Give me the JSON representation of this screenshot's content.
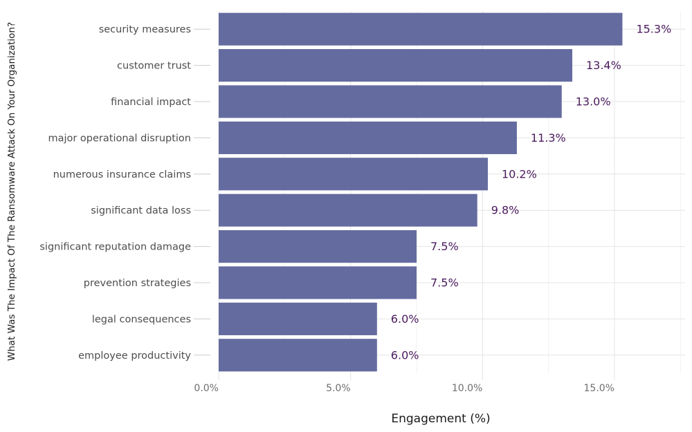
{
  "chart_data": {
    "type": "bar",
    "orientation": "horizontal",
    "title": "",
    "xlabel": "Engagement (%)",
    "ylabel": "What Was The Impact Of The Ransomware Attack On Your Organization?",
    "categories": [
      "security measures",
      "customer trust",
      "financial impact",
      "major operational disruption",
      "numerous insurance claims",
      "significant data loss",
      "significant reputation damage",
      "prevention strategies",
      "legal consequences",
      "employee productivity"
    ],
    "values": [
      15.3,
      13.4,
      13.0,
      11.3,
      10.2,
      9.8,
      7.5,
      7.5,
      6.0,
      6.0
    ],
    "data_labels": [
      "15.3%",
      "13.4%",
      "13.0%",
      "11.3%",
      "10.2%",
      "9.8%",
      "7.5%",
      "7.5%",
      "6.0%",
      "6.0%"
    ],
    "xticks": [
      0,
      5,
      10,
      15
    ],
    "xtick_labels": [
      "0.0%",
      "5.0%",
      "10.0%",
      "15.0%"
    ],
    "xlim": [
      0,
      17.7
    ],
    "grid": true,
    "legend": "none",
    "colors": {
      "bar": "#646b9f",
      "data_label": "#4b1a5e"
    }
  }
}
